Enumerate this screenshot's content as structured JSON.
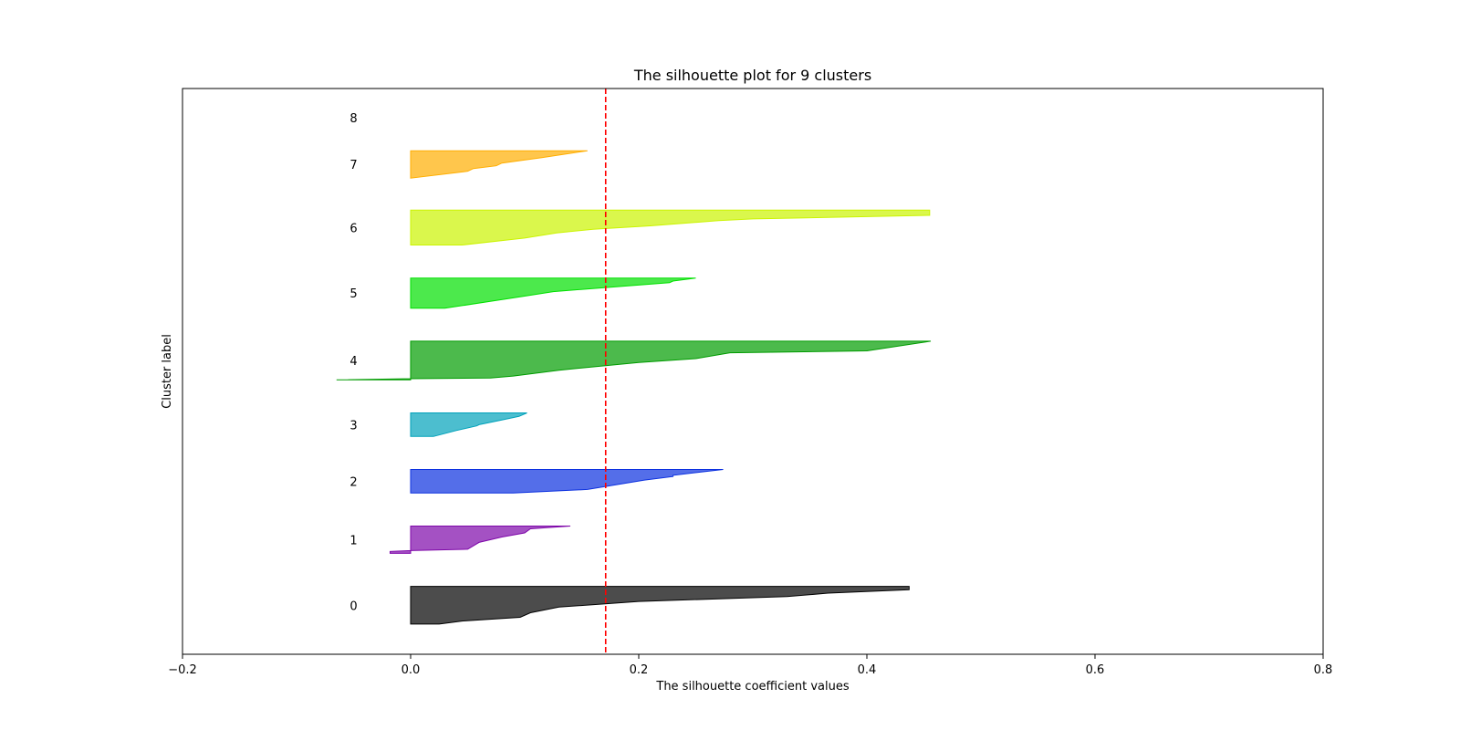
{
  "chart_data": {
    "type": "area",
    "title": "The silhouette plot for 9 clusters",
    "xlabel": "The silhouette coefficient values",
    "ylabel": "Cluster label",
    "xlim": [
      -0.2,
      0.8
    ],
    "xticks": [
      -0.2,
      0.0,
      0.2,
      0.4,
      0.6,
      0.8
    ],
    "xtick_labels": [
      "−0.2",
      "0.0",
      "0.2",
      "0.4",
      "0.6",
      "0.8"
    ],
    "ylim": [
      0,
      600
    ],
    "yticks": [],
    "grid": false,
    "average_silhouette_score": 0.171,
    "average_line_color": "#ff0000",
    "clusters": [
      {
        "label": "0",
        "color": "#000000",
        "y_lower": 32,
        "y_upper": 72,
        "profile": [
          [
            0.0,
            0.437
          ],
          [
            0.09,
            0.437
          ],
          [
            0.18,
            0.366
          ],
          [
            0.27,
            0.33
          ],
          [
            0.4,
            0.2
          ],
          [
            0.55,
            0.13
          ],
          [
            0.7,
            0.105
          ],
          [
            0.82,
            0.096
          ],
          [
            0.92,
            0.045
          ],
          [
            1.0,
            0.025
          ]
        ]
      },
      {
        "label": "1",
        "color": "#7e07a9",
        "y_lower": 107,
        "y_upper": 136,
        "profile": [
          [
            0.0,
            0.14
          ],
          [
            0.1,
            0.105
          ],
          [
            0.25,
            0.1
          ],
          [
            0.4,
            0.08
          ],
          [
            0.6,
            0.06
          ],
          [
            0.85,
            0.05
          ],
          [
            0.9,
            0.0
          ],
          [
            0.93,
            -0.018
          ],
          [
            1.0,
            -0.018
          ]
        ]
      },
      {
        "label": "2",
        "color": "#0c31e0",
        "y_lower": 171,
        "y_upper": 196,
        "profile": [
          [
            0.0,
            0.274
          ],
          [
            0.25,
            0.23
          ],
          [
            0.3,
            0.23
          ],
          [
            0.45,
            0.205
          ],
          [
            0.65,
            0.18
          ],
          [
            0.85,
            0.155
          ],
          [
            1.0,
            0.09
          ]
        ]
      },
      {
        "label": "3",
        "color": "#00a2ba",
        "y_lower": 231,
        "y_upper": 256,
        "profile": [
          [
            0.0,
            0.102
          ],
          [
            0.15,
            0.095
          ],
          [
            0.3,
            0.08
          ],
          [
            0.5,
            0.06
          ],
          [
            0.55,
            0.058
          ],
          [
            0.75,
            0.04
          ],
          [
            1.0,
            0.02
          ]
        ]
      },
      {
        "label": "4",
        "color": "#009c00",
        "y_lower": 291,
        "y_upper": 332,
        "profile": [
          [
            0.0,
            0.456
          ],
          [
            0.25,
            0.4
          ],
          [
            0.3,
            0.28
          ],
          [
            0.45,
            0.25
          ],
          [
            0.55,
            0.2
          ],
          [
            0.75,
            0.13
          ],
          [
            0.9,
            0.09
          ],
          [
            0.95,
            0.07
          ],
          [
            0.97,
            0.0
          ],
          [
            1.0,
            -0.065
          ]
        ]
      },
      {
        "label": "5",
        "color": "#00e000",
        "y_lower": 367,
        "y_upper": 399,
        "profile": [
          [
            0.0,
            0.25
          ],
          [
            0.1,
            0.23
          ],
          [
            0.15,
            0.227
          ],
          [
            0.45,
            0.125
          ],
          [
            0.6,
            0.1
          ],
          [
            1.0,
            0.03
          ]
        ]
      },
      {
        "label": "6",
        "color": "#cbf400",
        "y_lower": 434,
        "y_upper": 471,
        "profile": [
          [
            0.0,
            0.455
          ],
          [
            0.15,
            0.455
          ],
          [
            0.25,
            0.3
          ],
          [
            0.3,
            0.27
          ],
          [
            0.45,
            0.21
          ],
          [
            0.55,
            0.16
          ],
          [
            0.65,
            0.128
          ],
          [
            0.8,
            0.1
          ],
          [
            1.0,
            0.045
          ]
        ]
      },
      {
        "label": "7",
        "color": "#ffae00",
        "y_lower": 505,
        "y_upper": 534,
        "profile": [
          [
            0.0,
            0.155
          ],
          [
            0.25,
            0.115
          ],
          [
            0.45,
            0.08
          ],
          [
            0.55,
            0.075
          ],
          [
            0.65,
            0.055
          ],
          [
            0.75,
            0.05
          ],
          [
            1.0,
            0.0
          ]
        ]
      },
      {
        "label": "8",
        "color": "#cccccc",
        "y_lower": 569,
        "y_upper": 569,
        "profile": []
      }
    ]
  }
}
